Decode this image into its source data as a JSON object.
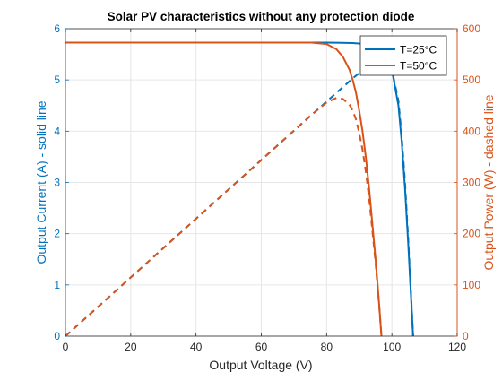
{
  "chart_data": {
    "type": "line",
    "title": "Solar PV characteristics without any protection diode",
    "xlabel": "Output Voltage (V)",
    "ylabel_left": "Output Current (A) - solid line",
    "ylabel_right": "Output Power (W) - dashed line",
    "xlim": [
      0,
      120
    ],
    "ylim_left": [
      0,
      6
    ],
    "ylim_right": [
      0,
      600
    ],
    "xticks": [
      "0",
      "20",
      "40",
      "60",
      "80",
      "100",
      "120"
    ],
    "yticks_left": [
      "0",
      "1",
      "2",
      "3",
      "4",
      "5",
      "6"
    ],
    "yticks_right": [
      "0",
      "100",
      "200",
      "300",
      "400",
      "500",
      "600"
    ],
    "grid": true,
    "legend_position": "top-right",
    "legend_labels": [
      "T=25°C",
      "T=50°C"
    ],
    "colors": {
      "left_axis": "#0072BD",
      "right_axis": "#D95319",
      "T25": "#0072BD",
      "T50": "#D95319",
      "grid": "#e6e6e6"
    },
    "series": [
      {
        "name": "T=25°C",
        "quantity": "current",
        "axis": "left",
        "style": "solid",
        "x": [
          0,
          60,
          80,
          88,
          92,
          95,
          98,
          100,
          102,
          103,
          104,
          105,
          106,
          106.5
        ],
        "y": [
          5.73,
          5.73,
          5.73,
          5.72,
          5.7,
          5.65,
          5.45,
          5.2,
          4.5,
          3.8,
          2.9,
          1.8,
          0.6,
          0
        ]
      },
      {
        "name": "T=25°C",
        "quantity": "power",
        "axis": "right",
        "style": "dashed",
        "x": [
          0,
          20,
          40,
          60,
          80,
          88,
          92,
          95,
          98,
          100,
          102,
          103,
          104,
          105,
          106,
          106.5
        ],
        "y": [
          0,
          114.6,
          229.2,
          343.8,
          458,
          503,
          524,
          537,
          534,
          520,
          459,
          391,
          302,
          189,
          64,
          0
        ]
      },
      {
        "name": "T=50°C",
        "quantity": "current",
        "axis": "left",
        "style": "solid",
        "x": [
          0,
          60,
          75,
          80,
          83,
          85,
          87,
          88,
          89,
          90,
          91,
          92,
          93,
          94,
          95,
          96,
          96.8
        ],
        "y": [
          5.73,
          5.73,
          5.73,
          5.7,
          5.6,
          5.45,
          5.2,
          5.0,
          4.75,
          4.4,
          4.0,
          3.5,
          2.9,
          2.2,
          1.5,
          0.7,
          0
        ]
      },
      {
        "name": "T=50°C",
        "quantity": "power",
        "axis": "right",
        "style": "dashed",
        "x": [
          0,
          20,
          40,
          60,
          75,
          80,
          83,
          85,
          87,
          88,
          89,
          90,
          91,
          92,
          93,
          94,
          95,
          96,
          96.8
        ],
        "y": [
          0,
          114.6,
          229.2,
          343.8,
          430,
          456,
          465,
          463,
          452,
          440,
          423,
          396,
          364,
          322,
          270,
          207,
          143,
          67,
          0
        ]
      }
    ]
  }
}
